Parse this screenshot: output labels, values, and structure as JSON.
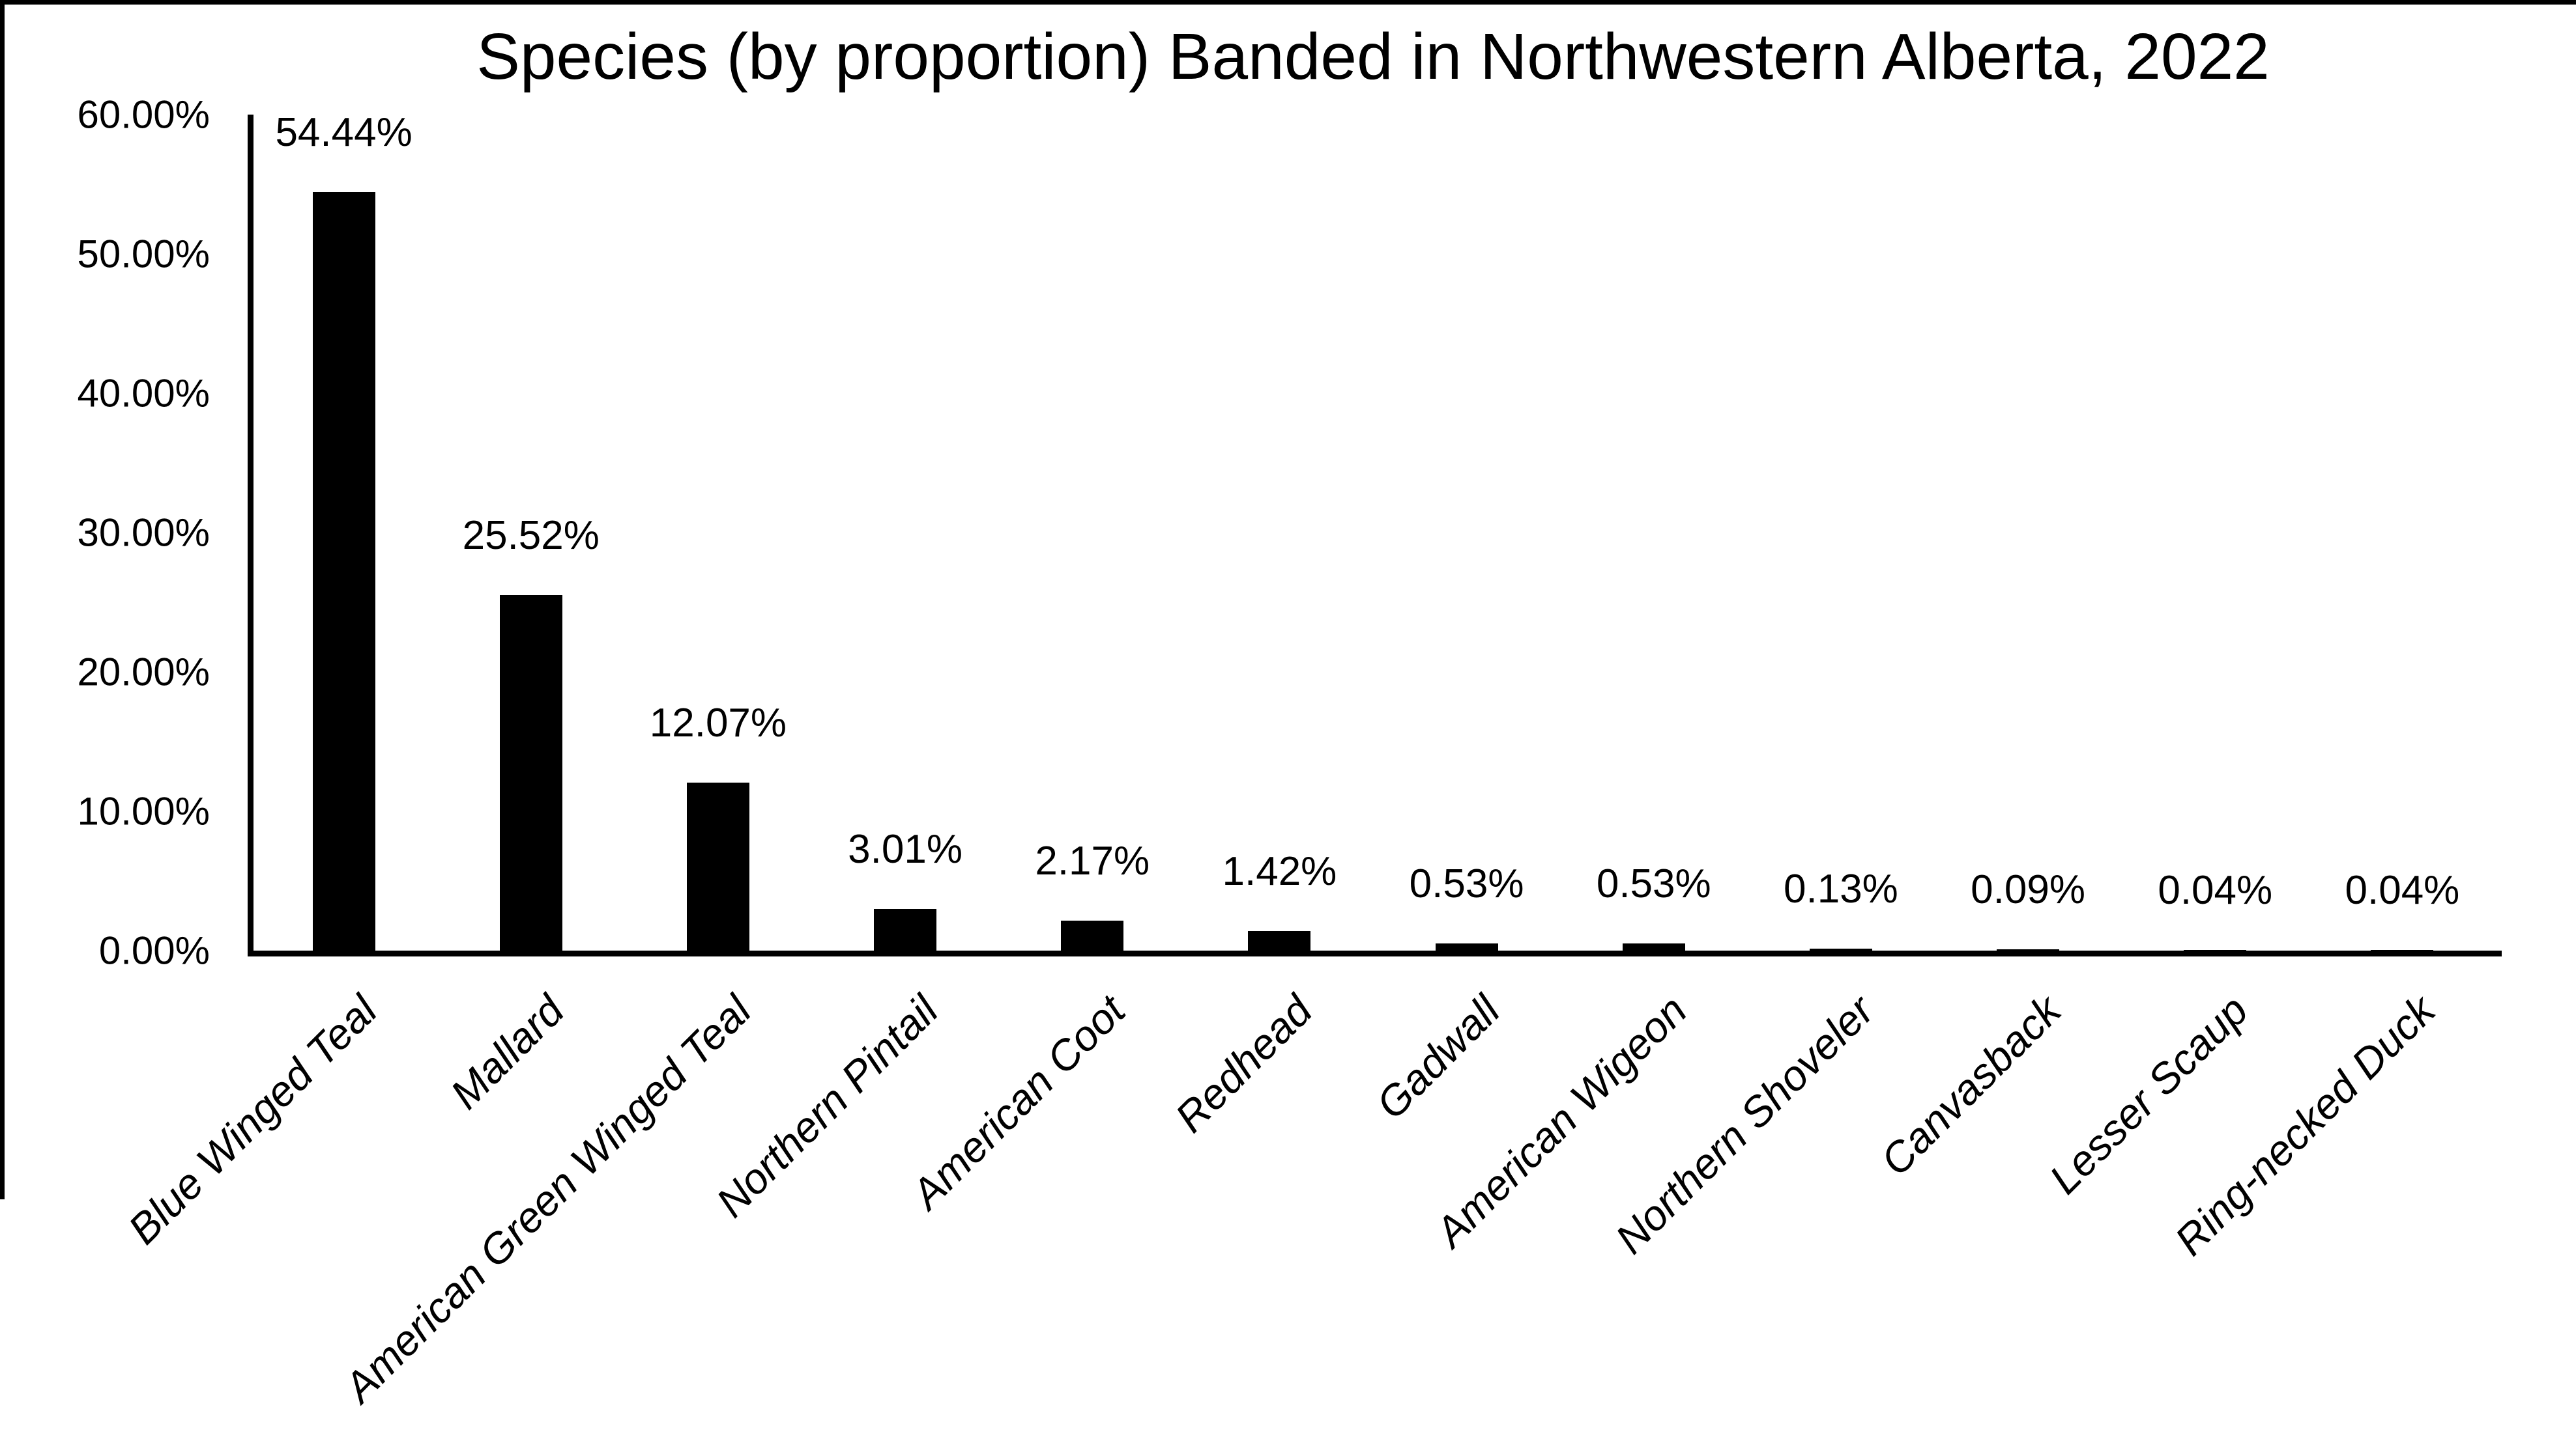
{
  "chart_data": {
    "type": "bar",
    "title": "Species (by proportion) Banded in Northwestern Alberta, 2022",
    "categories": [
      "Blue Winged Teal",
      "Mallard",
      "American Green Winged Teal",
      "Northern Pintail",
      "American Coot",
      "Redhead",
      "Gadwall",
      "American Wigeon",
      "Northern Shoveler",
      "Canvasback",
      "Lesser Scaup",
      "Ring-necked Duck"
    ],
    "values": [
      54.44,
      25.52,
      12.07,
      3.01,
      2.17,
      1.42,
      0.53,
      0.53,
      0.13,
      0.09,
      0.04,
      0.04
    ],
    "value_labels": [
      "54.44%",
      "25.52%",
      "12.07%",
      "3.01%",
      "2.17%",
      "1.42%",
      "0.53%",
      "0.53%",
      "0.13%",
      "0.09%",
      "0.04%",
      "0.04%"
    ],
    "xlabel": "",
    "ylabel": "",
    "y_axis": {
      "tick_labels": [
        "60.00%",
        "50.00%",
        "40.00%",
        "30.00%",
        "20.00%",
        "10.00%",
        "0.00%"
      ],
      "tick_values": [
        60,
        50,
        40,
        30,
        20,
        10,
        0
      ],
      "ylim": [
        0,
        60
      ],
      "tick_step": 10
    },
    "grid": false,
    "legend": false,
    "colors": {
      "bar": "#000000",
      "axis": "#000000",
      "text": "#000000",
      "background": "#ffffff"
    }
  }
}
